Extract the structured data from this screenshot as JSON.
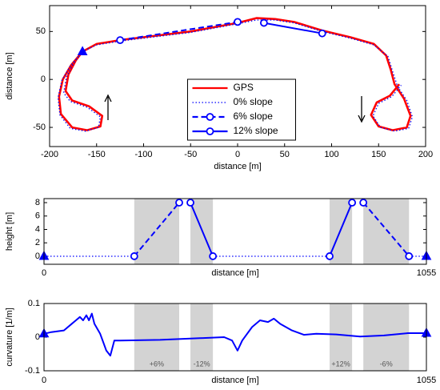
{
  "chart_data": [
    {
      "type": "line",
      "xlabel": "distance [m]",
      "ylabel": "distance [m]",
      "xlim": [
        -200,
        200
      ],
      "xticks": [
        -200,
        -150,
        -100,
        -50,
        0,
        50,
        100,
        150,
        200
      ],
      "ylim": [
        -70,
        77
      ],
      "yticks": [
        -50,
        0,
        50
      ],
      "legend": "center",
      "series": [
        {
          "name": "GPS",
          "color": "#ff0000",
          "line_style": "solid",
          "x": [
            -165,
            -172,
            -180,
            -183,
            -176,
            -158,
            -144,
            -146,
            -160,
            -176,
            -188,
            -190,
            -186,
            -177,
            -165,
            -150,
            -125,
            -100,
            -50,
            0,
            20,
            40,
            60,
            90,
            120,
            145,
            158,
            163,
            167,
            177,
            184,
            180,
            165,
            150,
            142,
            148,
            162,
            172
          ],
          "values": [
            29,
            20,
            5,
            -12,
            -22,
            -28,
            -38,
            -49,
            -53,
            -50,
            -36,
            -18,
            0,
            15,
            29,
            37,
            41,
            44,
            50,
            59,
            64,
            63,
            60,
            51,
            44,
            37,
            25,
            10,
            -5,
            -20,
            -38,
            -50,
            -53,
            -49,
            -37,
            -24,
            -17,
            -5
          ]
        },
        {
          "name": "0% slope",
          "color": "#0000ff",
          "line_style": "dotted",
          "x": [
            -165,
            -173,
            -182,
            -185,
            -178,
            -160,
            -146,
            -148,
            -162,
            -178,
            -189,
            -191,
            -187,
            -178,
            -165,
            -150,
            -125,
            -100,
            -50,
            0,
            20,
            40,
            60,
            90,
            120,
            145,
            160,
            165,
            170,
            180,
            186,
            182,
            167,
            152,
            144,
            150,
            164,
            174
          ],
          "values": [
            29,
            19,
            3,
            -14,
            -23,
            -29,
            -39,
            -50,
            -54,
            -51,
            -37,
            -19,
            -1,
            14,
            29,
            36,
            40,
            43,
            49,
            58,
            62,
            62,
            59,
            50,
            43,
            36,
            24,
            8,
            -7,
            -22,
            -39,
            -51,
            -54,
            -50,
            -38,
            -25,
            -18,
            -6
          ]
        },
        {
          "name": "6% slope",
          "color": "#0000ff",
          "line_style": "dashed",
          "marker": "circle",
          "x": [
            -125,
            0
          ],
          "values": [
            41,
            60
          ]
        },
        {
          "name": "12% slope",
          "color": "#0000ff",
          "line_style": "solid",
          "marker": "circle",
          "x": [
            28,
            90
          ],
          "values": [
            59,
            48
          ]
        }
      ],
      "markers": {
        "x": [
          -165
        ],
        "values": [
          29
        ],
        "color": "#0000ff"
      }
    },
    {
      "type": "line",
      "xlabel": "distance [m]",
      "ylabel": "height [m]",
      "xlim": [
        0,
        1055
      ],
      "xticks": [
        0,
        1055
      ],
      "ylim": [
        -1.2,
        8.6
      ],
      "yticks": [
        0,
        2,
        4,
        6,
        8
      ],
      "bands": [
        [
          249,
          373
        ],
        [
          404,
          466
        ],
        [
          788,
          850
        ],
        [
          881,
          1007
        ]
      ],
      "series": [
        {
          "color": "#0000ff",
          "line_style": "dotted",
          "x": [
            0,
            249,
            null,
            466,
            788,
            null,
            1007,
            1055
          ],
          "values": [
            0,
            0,
            null,
            0,
            0,
            null,
            0,
            0
          ]
        },
        {
          "color": "#0000ff",
          "line_style": "dashed",
          "marker": "circle",
          "x": [
            249,
            373,
            null,
            881,
            1007
          ],
          "values": [
            0,
            8,
            null,
            8,
            0
          ]
        },
        {
          "color": "#0000ff",
          "line_style": "solid",
          "marker": "circle",
          "x": [
            404,
            466,
            null,
            788,
            850
          ],
          "values": [
            8,
            0,
            null,
            0,
            8
          ]
        }
      ],
      "markers": {
        "x": [
          0,
          1055
        ],
        "values": [
          0,
          0
        ],
        "color": "#0000ff"
      }
    },
    {
      "type": "line",
      "xlabel": "distance [m]",
      "ylabel": "curvature [1/m]",
      "xlim": [
        0,
        1055
      ],
      "xticks": [
        0,
        1055
      ],
      "ylim": [
        -0.1,
        0.1
      ],
      "yticks": [
        -0.1,
        0,
        0.1
      ],
      "bands": [
        [
          249,
          373
        ],
        [
          404,
          466
        ],
        [
          788,
          850
        ],
        [
          881,
          1007
        ]
      ],
      "band_labels": [
        "+6%",
        "-12%",
        "+12%",
        "-6%"
      ],
      "series": [
        {
          "color": "#0000ff",
          "line_style": "solid",
          "x": [
            0,
            20,
            55,
            77,
            88,
            99,
            108,
            117,
            124,
            132,
            139,
            155,
            172,
            183,
            194,
            210,
            320,
            430,
            497,
            519,
            534,
            547,
            574,
            596,
            618,
            634,
            651,
            684,
            717,
            751,
            806,
            872,
            938,
            1004,
            1055
          ],
          "values": [
            0.01,
            0.015,
            0.02,
            0.04,
            0.05,
            0.06,
            0.05,
            0.065,
            0.05,
            0.07,
            0.04,
            0.01,
            -0.04,
            -0.055,
            -0.01,
            -0.01,
            -0.008,
            -0.003,
            0,
            -0.01,
            -0.04,
            -0.01,
            0.03,
            0.05,
            0.045,
            0.055,
            0.04,
            0.02,
            0.007,
            0.01,
            0.008,
            0.002,
            0.005,
            0.012,
            0.012
          ]
        }
      ],
      "markers": {
        "x": [
          0,
          1055
        ],
        "values": [
          0.01,
          0.012
        ],
        "color": "#0000ff"
      }
    }
  ]
}
